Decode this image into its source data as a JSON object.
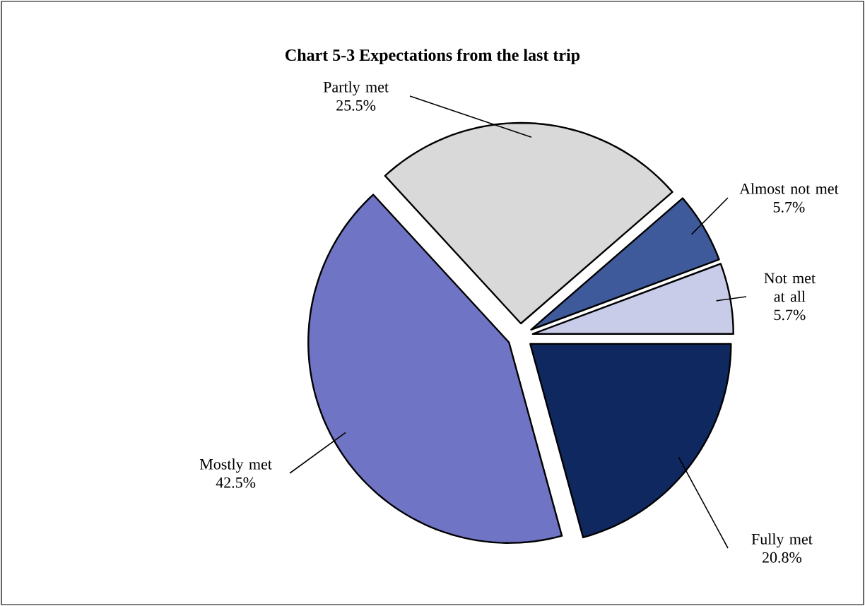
{
  "chart_data": {
    "type": "pie",
    "title": "Chart 5-3 Expectations from the last trip",
    "categories": [
      "Fully met",
      "Mostly met",
      "Partly met",
      "Almost not met",
      "Not met at all"
    ],
    "values": [
      20.8,
      42.5,
      25.5,
      5.7,
      5.7
    ],
    "value_labels": [
      "20.8%",
      "42.5%",
      "25.5%",
      "5.7%",
      "5.7%"
    ],
    "colors": [
      "#0f2860",
      "#7074c4",
      "#d9d9d9",
      "#3f5a9a",
      "#c8cce8"
    ]
  }
}
